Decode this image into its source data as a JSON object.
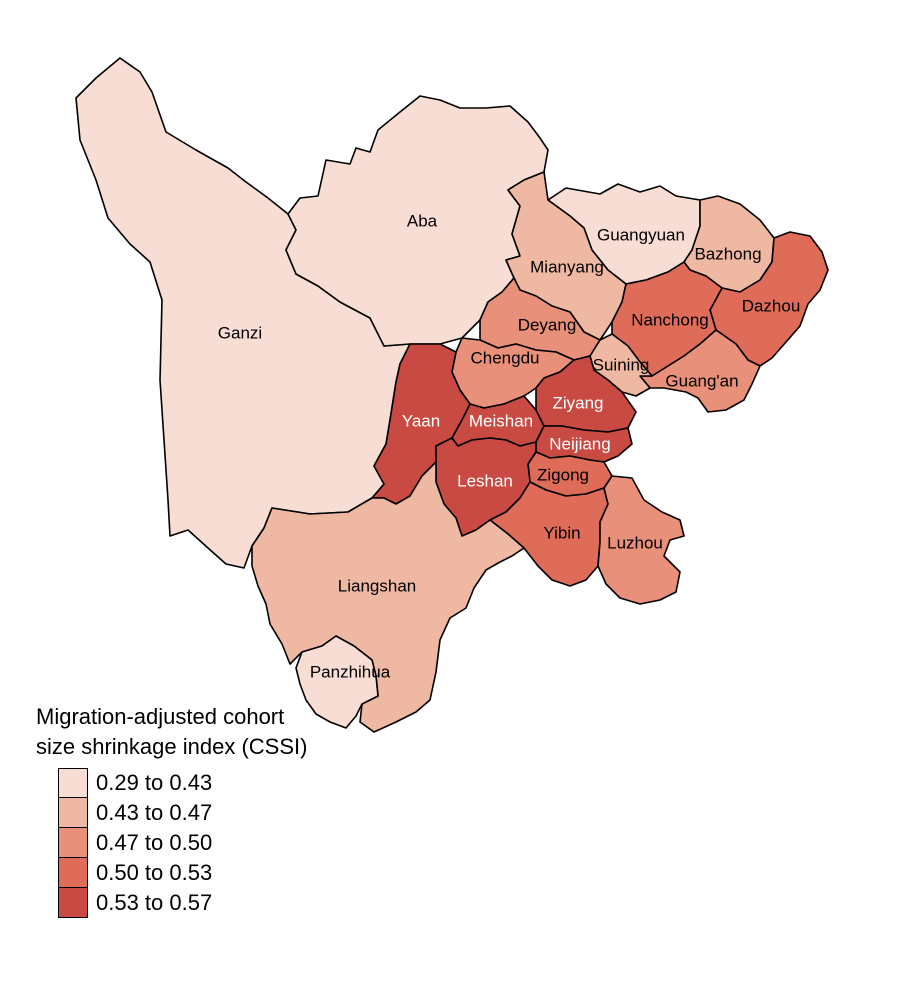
{
  "map": {
    "legend": {
      "title_line1": "Migration-adjusted cohort",
      "title_line2": "size shrinkage index (CSSI)",
      "bins": [
        {
          "label": "0.29 to 0.43",
          "color": "#f7ddd3"
        },
        {
          "label": "0.43 to 0.47",
          "color": "#efb8a2"
        },
        {
          "label": "0.47 to 0.50",
          "color": "#e8907a"
        },
        {
          "label": "0.50 to 0.53",
          "color": "#de6c58"
        },
        {
          "label": "0.53 to 0.57",
          "color": "#c84a42"
        }
      ]
    },
    "regions": [
      {
        "name": "Ganzi",
        "bin": 0
      },
      {
        "name": "Aba",
        "bin": 0
      },
      {
        "name": "Guangyuan",
        "bin": 0
      },
      {
        "name": "Panzhihua",
        "bin": 0
      },
      {
        "name": "Mianyang",
        "bin": 1
      },
      {
        "name": "Bazhong",
        "bin": 1
      },
      {
        "name": "Liangshan",
        "bin": 1
      },
      {
        "name": "Suining",
        "bin": 1
      },
      {
        "name": "Deyang",
        "bin": 2
      },
      {
        "name": "Chengdu",
        "bin": 2
      },
      {
        "name": "Guang'an",
        "bin": 2
      },
      {
        "name": "Luzhou",
        "bin": 2
      },
      {
        "name": "Nanchong",
        "bin": 3
      },
      {
        "name": "Dazhou",
        "bin": 3
      },
      {
        "name": "Yibin",
        "bin": 3
      },
      {
        "name": "Zigong",
        "bin": 3
      },
      {
        "name": "Yaan",
        "bin": 4
      },
      {
        "name": "Meishan",
        "bin": 4
      },
      {
        "name": "Ziyang",
        "bin": 4
      },
      {
        "name": "Neijiang",
        "bin": 4
      },
      {
        "name": "Leshan",
        "bin": 4
      }
    ]
  }
}
